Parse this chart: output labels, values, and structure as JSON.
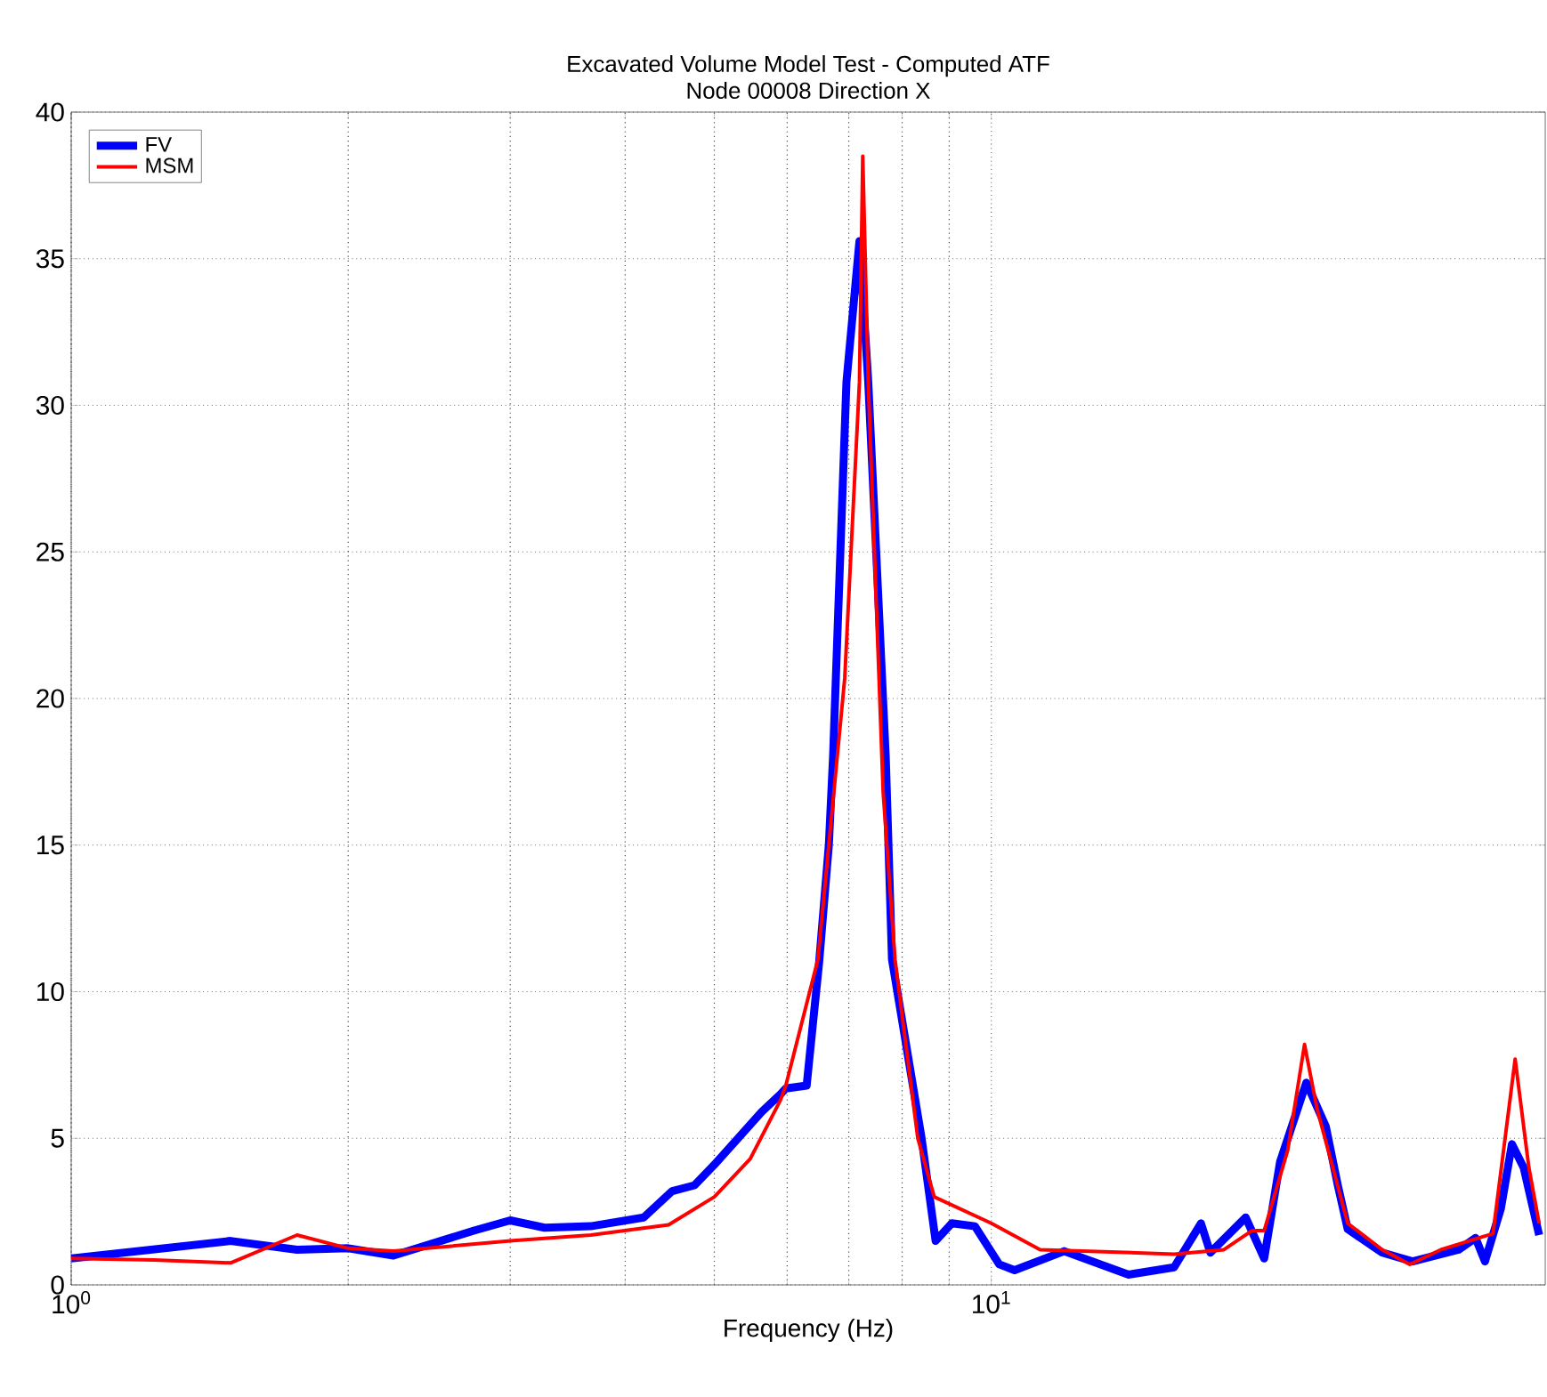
{
  "chart_data": {
    "type": "line",
    "title": "Excavated Volume Model Test - Computed ATF",
    "subtitle": "Node 00008 Direction X",
    "xlabel": "Frequency (Hz)",
    "log": "x",
    "grid": true,
    "legend": "top left",
    "xlim": [
      1,
      40
    ],
    "ylim": [
      0,
      40
    ],
    "xticks": [
      {
        "value": 1,
        "label": "10$^{0}$"
      },
      {
        "value": 10,
        "label": "10$^{1}$"
      }
    ],
    "yticks": [
      0,
      5,
      10,
      15,
      20,
      25,
      30,
      35,
      40
    ],
    "series": [
      {
        "name": "FV",
        "color": "#0000ff",
        "x": [
          1,
          1.49,
          1.76,
          2.0,
          2.24,
          2.74,
          3.0,
          3.27,
          3.67,
          4.19,
          4.5,
          4.76,
          5.0,
          5.63,
          5.9,
          5.98,
          6.3,
          6.5,
          6.66,
          6.73,
          6.96,
          7.19,
          7.35,
          7.68,
          7.8,
          8.4,
          8.7,
          9.06,
          9.6,
          10.2,
          10.6,
          12.0,
          14.1,
          15.8,
          16.9,
          17.3,
          18.9,
          19.8,
          20.6,
          22.0,
          23.1,
          23.8,
          24.4,
          26.6,
          28.7,
          32.2,
          33.6,
          34.4,
          35.8,
          36.8,
          37.9,
          39.4
        ],
        "values": [
          0.9,
          1.5,
          1.2,
          1.25,
          1.0,
          1.85,
          2.2,
          1.95,
          2.0,
          2.3,
          3.2,
          3.4,
          4.1,
          5.9,
          6.5,
          6.7,
          6.8,
          11,
          15,
          18,
          30.8,
          35.6,
          30.8,
          18,
          11.1,
          5.0,
          1.5,
          2.1,
          2.0,
          0.7,
          0.5,
          1.15,
          0.35,
          0.6,
          2.1,
          1.1,
          2.3,
          0.9,
          4.2,
          6.9,
          5.4,
          3.4,
          1.9,
          1.1,
          0.8,
          1.2,
          1.6,
          0.8,
          2.6,
          4.8,
          4.0,
          1.7
        ]
      },
      {
        "name": "MSM",
        "color": "#ff0000",
        "x": [
          1,
          1.23,
          1.49,
          1.76,
          2.0,
          2.24,
          3.0,
          3.67,
          4.46,
          5.0,
          5.47,
          5.9,
          5.98,
          6.48,
          6.93,
          7.19,
          7.25,
          7.35,
          7.63,
          7.86,
          8.32,
          8.67,
          10.0,
          11.3,
          15.8,
          17.9,
          19.2,
          19.8,
          21.0,
          21.9,
          22.6,
          24.4,
          26.6,
          28.5,
          30.8,
          35.1,
          37.1,
          38.4,
          39.4
        ],
        "values": [
          0.9,
          0.85,
          0.75,
          1.7,
          1.25,
          1.15,
          1.5,
          1.7,
          2.05,
          3.0,
          4.3,
          6.3,
          6.8,
          11.1,
          20.7,
          30.8,
          38.5,
          30.8,
          16.8,
          11.1,
          5.0,
          3.0,
          2.1,
          1.2,
          1.05,
          1.2,
          1.85,
          1.85,
          4.6,
          8.2,
          6.0,
          2.1,
          1.2,
          0.7,
          1.2,
          1.75,
          7.7,
          4.0,
          2.1
        ]
      }
    ]
  }
}
